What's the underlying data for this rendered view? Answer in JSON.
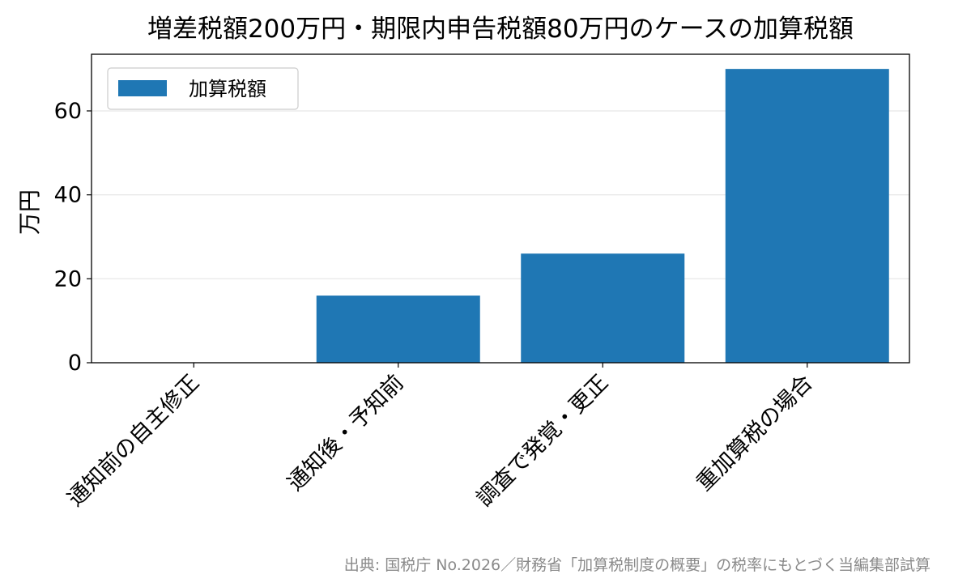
{
  "chart_data": {
    "type": "bar",
    "title": "増差税額200万円・期限内申告税額80万円のケースの加算税額",
    "xlabel": "",
    "ylabel": "万円",
    "categories": [
      "通知前の自主修正",
      "通知後・予知前",
      "調査で発覚・更正",
      "重加算税の場合"
    ],
    "series": [
      {
        "name": "加算税額",
        "values": [
          0,
          16,
          26,
          70
        ],
        "color": "#1f77b4"
      }
    ],
    "ylim": [
      0,
      73.5
    ],
    "yticks": [
      "0",
      "20",
      "40",
      "60"
    ],
    "grid": true,
    "legend": "top-left"
  },
  "source_note": "出典: 国税庁 No.2026／財務省「加算税制度の概要」の税率にもとづく当編集部試算"
}
